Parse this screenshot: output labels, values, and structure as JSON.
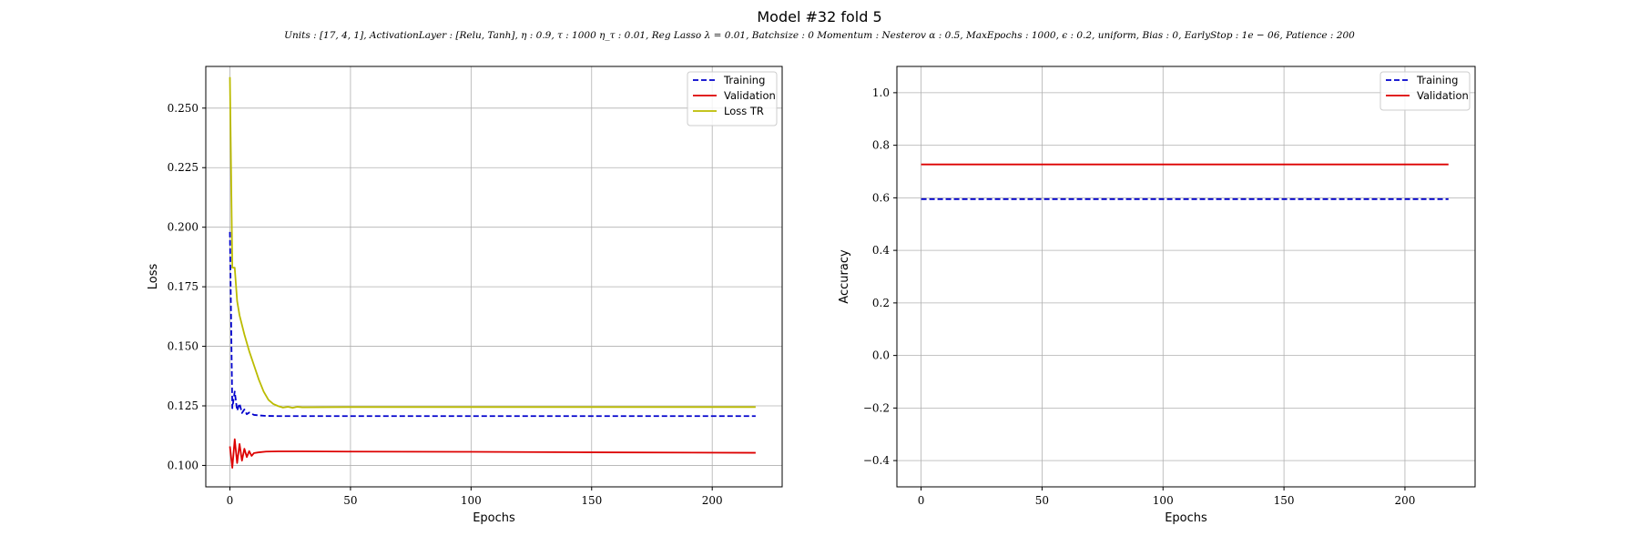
{
  "figure": {
    "title": "Model #32 fold 5",
    "subtitle": "Units : [17, 4, 1], ActivationLayer : [Relu, Tanh], η : 0.9, τ : 1000 η_τ : 0.01, Reg Lasso λ = 0.01, Batchsize : 0 Momentum : Nesterov α : 0.5, MaxEpochs : 1000, ϵ : 0.2, uniform, Bias : 0, EarlyStop : 1e − 06, Patience : 200"
  },
  "chart_data": [
    {
      "type": "line",
      "xlabel": "Epochs",
      "ylabel": "Loss",
      "xlim": [
        -10,
        229
      ],
      "ylim": [
        0.091,
        0.2675
      ],
      "xticks": [
        0,
        50,
        100,
        150,
        200
      ],
      "yticks": [
        0.1,
        0.125,
        0.15,
        0.175,
        0.2,
        0.225,
        0.25
      ],
      "ytick_labels": [
        "0.100",
        "0.125",
        "0.150",
        "0.175",
        "0.200",
        "0.225",
        "0.250"
      ],
      "grid": true,
      "legend": "top-right",
      "series": [
        {
          "name": "Training",
          "color": "#0000cc",
          "style": "dashed",
          "x": [
            0,
            1,
            2,
            3,
            4,
            5,
            6,
            7,
            8,
            10,
            12,
            15,
            20,
            30,
            50,
            100,
            150,
            218
          ],
          "y": [
            0.198,
            0.124,
            0.131,
            0.123,
            0.126,
            0.122,
            0.1235,
            0.1215,
            0.1222,
            0.1212,
            0.121,
            0.1208,
            0.1207,
            0.1207,
            0.1207,
            0.1207,
            0.1207,
            0.1207
          ]
        },
        {
          "name": "Validation",
          "color": "#dd0000",
          "style": "solid",
          "x": [
            0,
            1,
            2,
            3,
            4,
            5,
            6,
            7,
            8,
            9,
            10,
            12,
            15,
            20,
            30,
            50,
            100,
            150,
            218
          ],
          "y": [
            0.108,
            0.099,
            0.111,
            0.101,
            0.109,
            0.102,
            0.107,
            0.1035,
            0.106,
            0.104,
            0.1052,
            0.1055,
            0.1058,
            0.1059,
            0.1059,
            0.1058,
            0.1057,
            0.1055,
            0.1053
          ]
        },
        {
          "name": "Loss TR",
          "color": "#bbbb00",
          "style": "solid",
          "x": [
            0,
            1,
            2,
            3,
            4,
            6,
            8,
            10,
            12,
            14,
            16,
            18,
            20,
            22,
            24,
            26,
            28,
            30,
            50,
            100,
            150,
            218
          ],
          "y": [
            0.263,
            0.183,
            0.183,
            0.169,
            0.163,
            0.155,
            0.148,
            0.142,
            0.136,
            0.131,
            0.1275,
            0.1258,
            0.1249,
            0.1243,
            0.1246,
            0.1242,
            0.1246,
            0.1244,
            0.1245,
            0.1245,
            0.1245,
            0.1245
          ]
        }
      ]
    },
    {
      "type": "line",
      "xlabel": "Epochs",
      "ylabel": "Accuracy",
      "xlim": [
        -10,
        229
      ],
      "ylim": [
        -0.5,
        1.1
      ],
      "xticks": [
        0,
        50,
        100,
        150,
        200
      ],
      "yticks": [
        -0.4,
        -0.2,
        0.0,
        0.2,
        0.4,
        0.6,
        0.8,
        1.0
      ],
      "ytick_labels": [
        "−0.4",
        "−0.2",
        "0.0",
        "0.2",
        "0.4",
        "0.6",
        "0.8",
        "1.0"
      ],
      "grid": true,
      "legend": "top-right",
      "series": [
        {
          "name": "Training",
          "color": "#0000cc",
          "style": "dashed",
          "x": [
            0,
            218
          ],
          "y": [
            0.595,
            0.595
          ]
        },
        {
          "name": "Validation",
          "color": "#dd0000",
          "style": "solid",
          "x": [
            0,
            218
          ],
          "y": [
            0.727,
            0.727
          ]
        }
      ]
    }
  ]
}
